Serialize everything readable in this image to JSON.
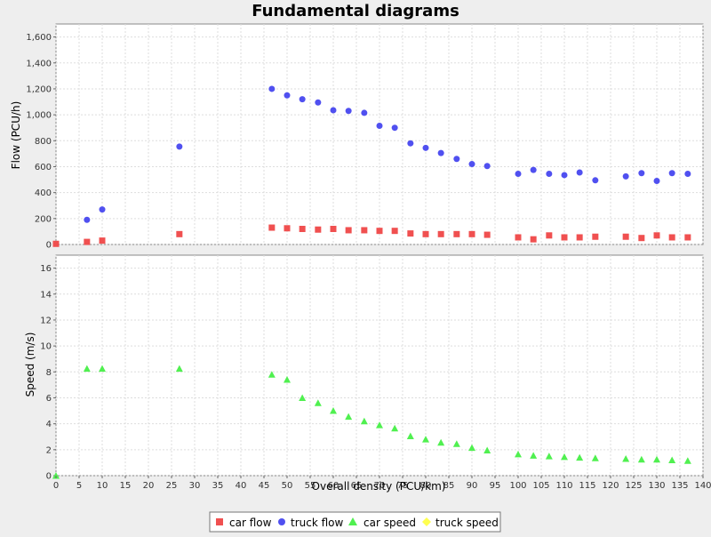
{
  "chart_data": {
    "type": "scatter",
    "title": "Fundamental diagrams",
    "xlabel": "Overall density (PCU/km)",
    "xlim": [
      0,
      140
    ],
    "x_ticks": [
      "0",
      "5",
      "10",
      "15",
      "20",
      "25",
      "30",
      "35",
      "40",
      "45",
      "50",
      "55",
      "60",
      "65",
      "70",
      "75",
      "80",
      "85",
      "90",
      "95",
      "100",
      "105",
      "110",
      "115",
      "120",
      "125",
      "130",
      "135",
      "140"
    ],
    "grid": true,
    "legend_placement": "bottom-center",
    "panels": [
      {
        "ylabel": "Flow (PCU/h)",
        "ylim": [
          0,
          1700
        ],
        "y_ticks": [
          {
            "v": 0,
            "t": "0"
          },
          {
            "v": 200,
            "t": "200"
          },
          {
            "v": 400,
            "t": "400"
          },
          {
            "v": 600,
            "t": "600"
          },
          {
            "v": 800,
            "t": "800"
          },
          {
            "v": 1000,
            "t": "1,000"
          },
          {
            "v": 1200,
            "t": "1,200"
          },
          {
            "v": 1400,
            "t": "1,400"
          },
          {
            "v": 1600,
            "t": "1,600"
          }
        ],
        "series": [
          {
            "name": "car flow",
            "marker": "square",
            "color": "#f05050",
            "points": [
              [
                0,
                5
              ],
              [
                6.7,
                20
              ],
              [
                10,
                30
              ],
              [
                26.7,
                80
              ],
              [
                46.7,
                130
              ],
              [
                50,
                125
              ],
              [
                53.3,
                120
              ],
              [
                56.7,
                115
              ],
              [
                60,
                120
              ],
              [
                63.3,
                110
              ],
              [
                66.7,
                110
              ],
              [
                70,
                105
              ],
              [
                73.3,
                105
              ],
              [
                76.7,
                85
              ],
              [
                80,
                80
              ],
              [
                83.3,
                80
              ],
              [
                86.7,
                80
              ],
              [
                90,
                80
              ],
              [
                93.3,
                75
              ],
              [
                100,
                55
              ],
              [
                103.3,
                40
              ],
              [
                106.7,
                70
              ],
              [
                110,
                55
              ],
              [
                113.3,
                55
              ],
              [
                116.7,
                60
              ],
              [
                123.3,
                60
              ],
              [
                126.7,
                50
              ],
              [
                130,
                70
              ],
              [
                133.3,
                55
              ],
              [
                136.7,
                55
              ]
            ]
          },
          {
            "name": "truck flow",
            "marker": "circle",
            "color": "#5050f0",
            "points": [
              [
                6.7,
                190
              ],
              [
                10,
                270
              ],
              [
                26.7,
                755
              ],
              [
                46.7,
                1200
              ],
              [
                50,
                1150
              ],
              [
                53.3,
                1120
              ],
              [
                56.7,
                1095
              ],
              [
                60,
                1035
              ],
              [
                63.3,
                1030
              ],
              [
                66.7,
                1015
              ],
              [
                70,
                915
              ],
              [
                73.3,
                900
              ],
              [
                76.7,
                780
              ],
              [
                80,
                745
              ],
              [
                83.3,
                705
              ],
              [
                86.7,
                660
              ],
              [
                90,
                620
              ],
              [
                93.3,
                605
              ],
              [
                100,
                545
              ],
              [
                103.3,
                575
              ],
              [
                106.7,
                545
              ],
              [
                110,
                535
              ],
              [
                113.3,
                555
              ],
              [
                116.7,
                495
              ],
              [
                123.3,
                525
              ],
              [
                126.7,
                550
              ],
              [
                130,
                490
              ],
              [
                133.3,
                550
              ],
              [
                136.7,
                545
              ]
            ]
          }
        ]
      },
      {
        "ylabel": "Speed (m/s)",
        "ylim": [
          0,
          17
        ],
        "y_ticks": [
          {
            "v": 0,
            "t": "0"
          },
          {
            "v": 2,
            "t": "2"
          },
          {
            "v": 4,
            "t": "4"
          },
          {
            "v": 6,
            "t": "6"
          },
          {
            "v": 8,
            "t": "8"
          },
          {
            "v": 10,
            "t": "10"
          },
          {
            "v": 12,
            "t": "12"
          },
          {
            "v": 14,
            "t": "14"
          },
          {
            "v": 16,
            "t": "16"
          }
        ],
        "series": [
          {
            "name": "car speed",
            "marker": "triangle",
            "color": "#50f050",
            "points": [
              [
                0,
                0
              ],
              [
                6.7,
                8.25
              ],
              [
                10,
                8.25
              ],
              [
                26.7,
                8.25
              ],
              [
                46.7,
                7.8
              ],
              [
                50,
                7.4
              ],
              [
                53.3,
                6.0
              ],
              [
                56.7,
                5.6
              ],
              [
                60,
                5.0
              ],
              [
                63.3,
                4.55
              ],
              [
                66.7,
                4.2
              ],
              [
                70,
                3.9
              ],
              [
                73.3,
                3.65
              ],
              [
                76.7,
                3.05
              ],
              [
                80,
                2.8
              ],
              [
                83.3,
                2.55
              ],
              [
                86.7,
                2.45
              ],
              [
                90,
                2.15
              ],
              [
                93.3,
                1.95
              ],
              [
                100,
                1.65
              ],
              [
                103.3,
                1.55
              ],
              [
                106.7,
                1.5
              ],
              [
                110,
                1.45
              ],
              [
                113.3,
                1.4
              ],
              [
                116.7,
                1.35
              ],
              [
                123.3,
                1.3
              ],
              [
                126.7,
                1.25
              ],
              [
                130,
                1.25
              ],
              [
                133.3,
                1.2
              ],
              [
                136.7,
                1.15
              ]
            ]
          },
          {
            "name": "truck speed",
            "marker": "diamond",
            "color": "#ffff50",
            "points": []
          }
        ]
      }
    ]
  }
}
